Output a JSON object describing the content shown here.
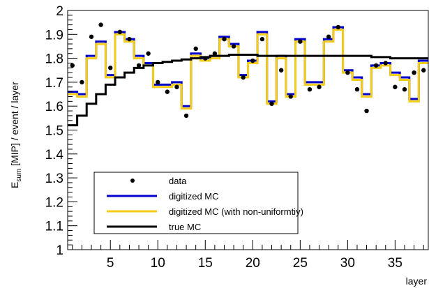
{
  "chart_data": {
    "type": "line",
    "title": "",
    "xlabel": "layer",
    "ylabel": {
      "main": "E",
      "sub": "sum",
      "rest": " [MIP] / event / layer"
    },
    "xlim": [
      0.5,
      38.5
    ],
    "ylim": [
      1.0,
      2.0
    ],
    "x_ticks": [
      5,
      10,
      15,
      20,
      25,
      30,
      35
    ],
    "x_tick_labels": [
      "5",
      "10",
      "15",
      "20",
      "25",
      "30",
      "35"
    ],
    "y_ticks": [
      1.0,
      1.1,
      1.2,
      1.3,
      1.4,
      1.5,
      1.6,
      1.7,
      1.8,
      1.9,
      2.0
    ],
    "y_tick_labels": [
      "1",
      "1.1",
      "1.2",
      "1.3",
      "1.4",
      "1.5",
      "1.6",
      "1.7",
      "1.8",
      "1.9",
      "2"
    ],
    "grid": false,
    "legend_position": "bottom-left",
    "layers": [
      1,
      2,
      3,
      4,
      5,
      6,
      7,
      8,
      9,
      10,
      11,
      12,
      13,
      14,
      15,
      16,
      17,
      18,
      19,
      20,
      21,
      22,
      23,
      24,
      25,
      26,
      27,
      28,
      29,
      30,
      31,
      32,
      33,
      34,
      35,
      36,
      37,
      38
    ],
    "series": [
      {
        "name": "data",
        "style": "markers",
        "color": "#000000",
        "values": [
          1.77,
          1.7,
          1.89,
          1.94,
          1.76,
          1.91,
          1.88,
          1.77,
          1.82,
          1.7,
          1.66,
          1.68,
          1.56,
          1.84,
          1.8,
          1.82,
          1.88,
          1.85,
          1.72,
          1.79,
          1.88,
          1.61,
          1.75,
          1.64,
          1.87,
          1.67,
          1.68,
          1.89,
          1.93,
          1.74,
          1.67,
          1.58,
          1.77,
          1.78,
          1.68,
          1.67,
          1.74,
          1.75
        ]
      },
      {
        "name": "digitized MC",
        "style": "step",
        "color": "#0000cc",
        "values": [
          1.66,
          1.65,
          1.81,
          1.87,
          1.73,
          1.91,
          1.88,
          1.81,
          1.78,
          1.69,
          1.69,
          1.7,
          1.6,
          1.82,
          1.8,
          1.81,
          1.89,
          1.86,
          1.73,
          1.79,
          1.91,
          1.62,
          1.81,
          1.65,
          1.88,
          1.7,
          1.7,
          1.88,
          1.93,
          1.75,
          1.72,
          1.65,
          1.77,
          1.78,
          1.74,
          1.72,
          1.63,
          1.79
        ]
      },
      {
        "name": "digitized MC (with non-uniformtiy)",
        "style": "step",
        "color": "#f4cc1a",
        "values": [
          1.65,
          1.64,
          1.8,
          1.86,
          1.72,
          1.9,
          1.87,
          1.8,
          1.77,
          1.68,
          1.68,
          1.69,
          1.59,
          1.81,
          1.79,
          1.8,
          1.88,
          1.85,
          1.72,
          1.78,
          1.9,
          1.61,
          1.8,
          1.64,
          1.87,
          1.69,
          1.69,
          1.87,
          1.92,
          1.74,
          1.71,
          1.64,
          1.76,
          1.77,
          1.73,
          1.71,
          1.62,
          1.78
        ]
      },
      {
        "name": "true MC",
        "style": "step",
        "color": "#000000",
        "values": [
          1.52,
          1.56,
          1.61,
          1.65,
          1.69,
          1.72,
          1.74,
          1.76,
          1.77,
          1.78,
          1.785,
          1.79,
          1.795,
          1.8,
          1.805,
          1.81,
          1.81,
          1.815,
          1.815,
          1.815,
          1.81,
          1.81,
          1.81,
          1.81,
          1.81,
          1.81,
          1.81,
          1.81,
          1.81,
          1.81,
          1.81,
          1.81,
          1.805,
          1.805,
          1.8,
          1.8,
          1.8,
          1.8
        ]
      }
    ]
  }
}
